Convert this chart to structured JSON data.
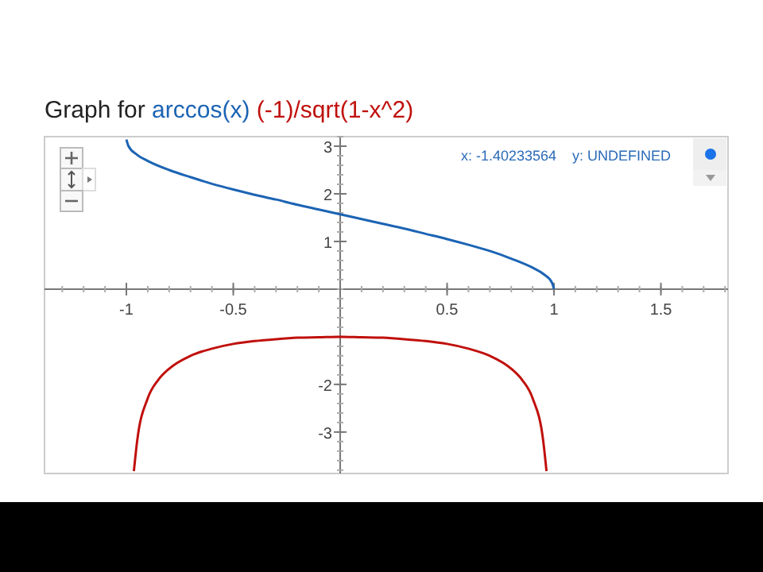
{
  "chart_data": {
    "type": "line",
    "title": "Graph for",
    "legend": "top left",
    "xlim": [
      -1.383,
      1.814
    ],
    "ylim": [
      -3.87,
      3.2
    ],
    "xticks": [
      -1,
      -0.5,
      {
        "value": 0,
        "label": null
      },
      0.5,
      1,
      1.5
    ],
    "yticks": [
      -3,
      -2,
      {
        "value": -1,
        "label": null
      },
      1,
      2,
      3
    ],
    "annotations": [
      "x: -1.40233564",
      "y: UNDEFINED"
    ],
    "series": [
      {
        "name": "arccos(x)",
        "color": "#1c64b4",
        "x": [
          -1,
          -0.99,
          -0.95,
          -0.9,
          -0.8,
          -0.7,
          -0.6,
          -0.5,
          -0.4,
          -0.3,
          -0.2,
          -0.1,
          0,
          0.1,
          0.2,
          0.3,
          0.4,
          0.5,
          0.6,
          0.7,
          0.8,
          0.9,
          0.95,
          0.99,
          1
        ],
        "values": [
          3.14,
          3.0,
          2.82,
          2.69,
          2.5,
          2.35,
          2.21,
          2.09,
          1.98,
          1.88,
          1.77,
          1.67,
          1.57,
          1.47,
          1.37,
          1.27,
          1.16,
          1.05,
          0.93,
          0.8,
          0.64,
          0.45,
          0.32,
          0.14,
          0
        ]
      },
      {
        "name": "(-1)/sqrt(1-x^2)",
        "color": "#c0100c",
        "x": [
          -0.965,
          -0.95,
          -0.9,
          -0.85,
          -0.8,
          -0.7,
          -0.6,
          -0.5,
          -0.4,
          -0.3,
          -0.2,
          -0.1,
          0,
          0.1,
          0.2,
          0.3,
          0.4,
          0.5,
          0.6,
          0.7,
          0.8,
          0.85,
          0.9,
          0.95,
          0.965
        ],
        "values": [
          -3.82,
          -3.2,
          -2.29,
          -1.9,
          -1.67,
          -1.4,
          -1.25,
          -1.15,
          -1.09,
          -1.05,
          -1.02,
          -1.01,
          -1,
          -1.01,
          -1.02,
          -1.05,
          -1.09,
          -1.15,
          -1.25,
          -1.4,
          -1.67,
          -1.9,
          -2.29,
          -3.2,
          -3.82
        ]
      }
    ]
  }
}
